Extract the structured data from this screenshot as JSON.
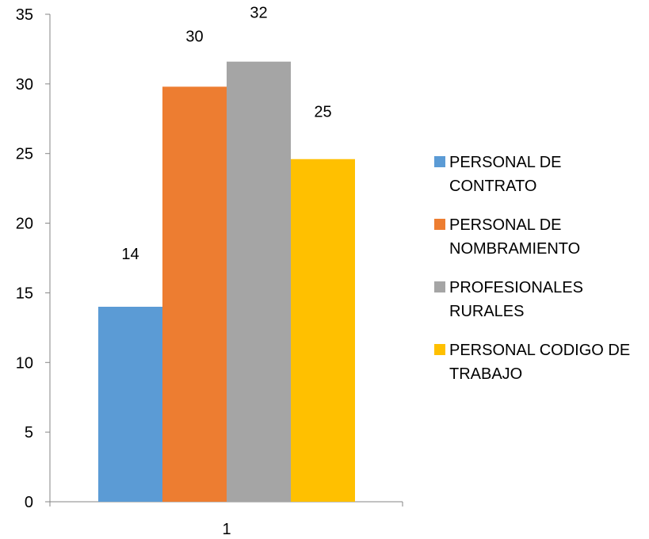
{
  "chart_data": {
    "type": "bar",
    "categories": [
      "1"
    ],
    "series": [
      {
        "name": "PERSONAL DE CONTRATO",
        "values": [
          14
        ],
        "color": "#5B9BD5"
      },
      {
        "name": "PERSONAL DE NOMBRAMIENTO",
        "values": [
          30
        ],
        "color": "#ED7D31"
      },
      {
        "name": "PROFESIONALES RURALES",
        "values": [
          32
        ],
        "color": "#A5A5A5"
      },
      {
        "name": "PERSONAL CODIGO DE TRABAJO",
        "values": [
          25
        ],
        "color": "#FFC000"
      }
    ],
    "bar_heights": [
      14,
      29.8,
      31.6,
      24.6
    ],
    "data_labels": [
      "14",
      "30",
      "32",
      "25"
    ],
    "y_ticks": [
      "0",
      "5",
      "10",
      "15",
      "20",
      "25",
      "30",
      "35"
    ],
    "ylim": [
      0,
      35
    ],
    "grid": false,
    "legend_position": "right",
    "title": "",
    "xlabel": "",
    "ylabel": ""
  }
}
